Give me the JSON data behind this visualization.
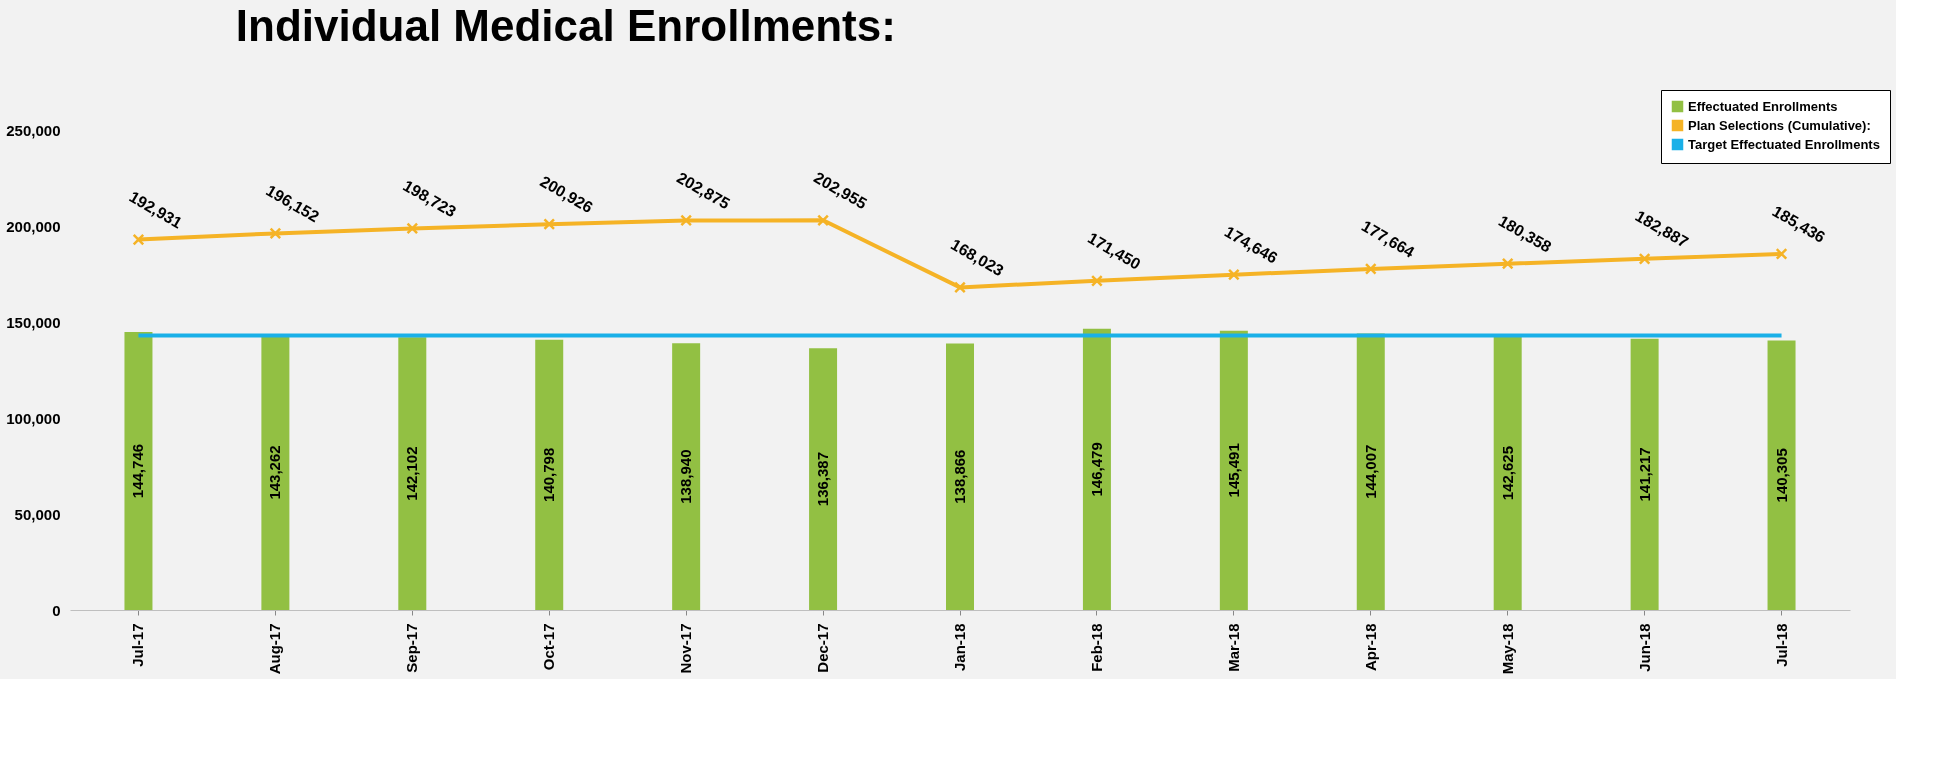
{
  "chart_data": {
    "type": "bar",
    "title": "Individual Medical Enrollments:",
    "categories": [
      "Jul-17",
      "Aug-17",
      "Sep-17",
      "Oct-17",
      "Nov-17",
      "Dec-17",
      "Jan-18",
      "Feb-18",
      "Mar-18",
      "Apr-18",
      "May-18",
      "Jun-18",
      "Jul-18"
    ],
    "series": [
      {
        "name": "Effectuated Enrollments",
        "color": "#92c043",
        "values": [
          144746,
          143262,
          142102,
          140798,
          138940,
          136387,
          138866,
          146479,
          145491,
          144007,
          142625,
          141217,
          140305
        ],
        "value_labels": [
          "144,746",
          "143,262",
          "142,102",
          "140,798",
          "138,940",
          "136,387",
          "138,866",
          "146,479",
          "145,491",
          "144,007",
          "142,625",
          "141,217",
          "140,305"
        ]
      },
      {
        "name": "Plan Selections (Cumulative):",
        "type": "line",
        "color": "#f5b326",
        "marker": "cross",
        "values": [
          192931,
          196152,
          198723,
          200926,
          202875,
          202955,
          168023,
          171450,
          174646,
          177664,
          180358,
          182887,
          185436
        ],
        "value_labels": [
          "192,931",
          "196,152",
          "198,723",
          "200,926",
          "202,875",
          "202,955",
          "168,023",
          "171,450",
          "174,646",
          "177,664",
          "180,358",
          "182,887",
          "185,436"
        ]
      },
      {
        "name": "Target Effectuated Enrollments",
        "type": "line",
        "color": "#1ab0e8",
        "marker": "none",
        "values": [
          143000,
          143000,
          143000,
          143000,
          143000,
          143000,
          143000,
          143000,
          143000,
          143000,
          143000,
          143000,
          143000
        ]
      }
    ],
    "ylim": [
      0,
      250000
    ],
    "yticks": [
      0,
      {
        "value": 50000,
        "label": "50,000"
      },
      {
        "value": 100000,
        "label": "100,000"
      },
      {
        "value": 150000,
        "label": "150,000"
      },
      {
        "value": 200000,
        "label": "200,000"
      },
      {
        "value": 250000,
        "label": "250,000"
      }
    ],
    "grid": false,
    "legend": "top right"
  }
}
